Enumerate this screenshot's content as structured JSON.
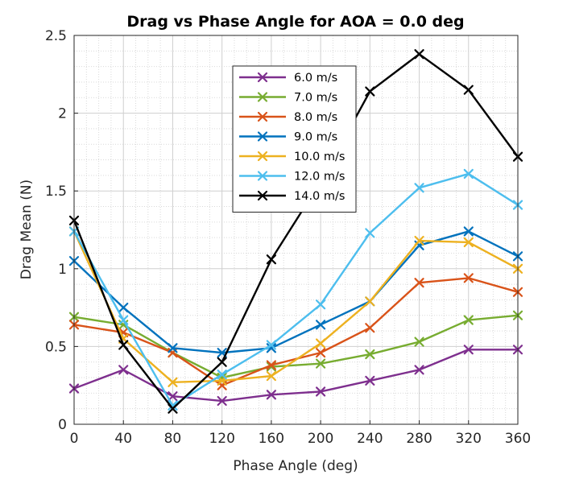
{
  "chart_data": {
    "type": "line",
    "title": "Drag vs Phase Angle for AOA = 0.0 deg",
    "xlabel": "Phase Angle (deg)",
    "ylabel": "Drag Mean (N)",
    "xlim": [
      0,
      360
    ],
    "ylim": [
      0,
      2.5
    ],
    "xticks": [
      0,
      40,
      80,
      120,
      160,
      200,
      240,
      280,
      320,
      360
    ],
    "yticks": [
      0,
      0.5,
      1,
      1.5,
      2,
      2.5
    ],
    "xtick_labels": [
      "0",
      "40",
      "80",
      "120",
      "160",
      "200",
      "240",
      "280",
      "320",
      "360"
    ],
    "ytick_labels": [
      "0",
      "0.5",
      "1",
      "1.5",
      "2",
      "2.5"
    ],
    "grid": true,
    "minor_grid": true,
    "legend_position": "top-center",
    "marker": "x",
    "x": [
      0,
      40,
      80,
      120,
      160,
      200,
      240,
      280,
      320,
      360
    ],
    "series": [
      {
        "name": "6.0 m/s",
        "color": "#7E2F8E",
        "values": [
          0.23,
          0.35,
          0.18,
          0.15,
          0.19,
          0.21,
          0.28,
          0.35,
          0.48,
          0.48
        ]
      },
      {
        "name": "7.0 m/s",
        "color": "#77AC30",
        "values": [
          0.69,
          0.64,
          0.46,
          0.3,
          0.37,
          0.39,
          0.45,
          0.53,
          0.67,
          0.7
        ]
      },
      {
        "name": "8.0 m/s",
        "color": "#D95319",
        "values": [
          0.64,
          0.59,
          0.46,
          0.25,
          0.38,
          0.46,
          0.62,
          0.91,
          0.94,
          0.85
        ]
      },
      {
        "name": "9.0 m/s",
        "color": "#0072BD",
        "values": [
          1.05,
          0.75,
          0.49,
          0.46,
          0.49,
          0.64,
          0.79,
          1.15,
          1.24,
          1.08
        ]
      },
      {
        "name": "10.0 m/s",
        "color": "#EDB120",
        "values": [
          1.24,
          0.55,
          0.27,
          0.28,
          0.31,
          0.52,
          0.79,
          1.18,
          1.17,
          1.0
        ]
      },
      {
        "name": "12.0 m/s",
        "color": "#4DBEEE",
        "values": [
          1.24,
          0.67,
          0.12,
          0.32,
          0.51,
          0.77,
          1.23,
          1.52,
          1.61,
          1.41
        ]
      },
      {
        "name": "14.0 m/s",
        "color": "#000000",
        "values": [
          1.31,
          0.51,
          0.1,
          0.4,
          1.06,
          1.56,
          2.14,
          2.38,
          2.15,
          1.72
        ]
      }
    ]
  }
}
